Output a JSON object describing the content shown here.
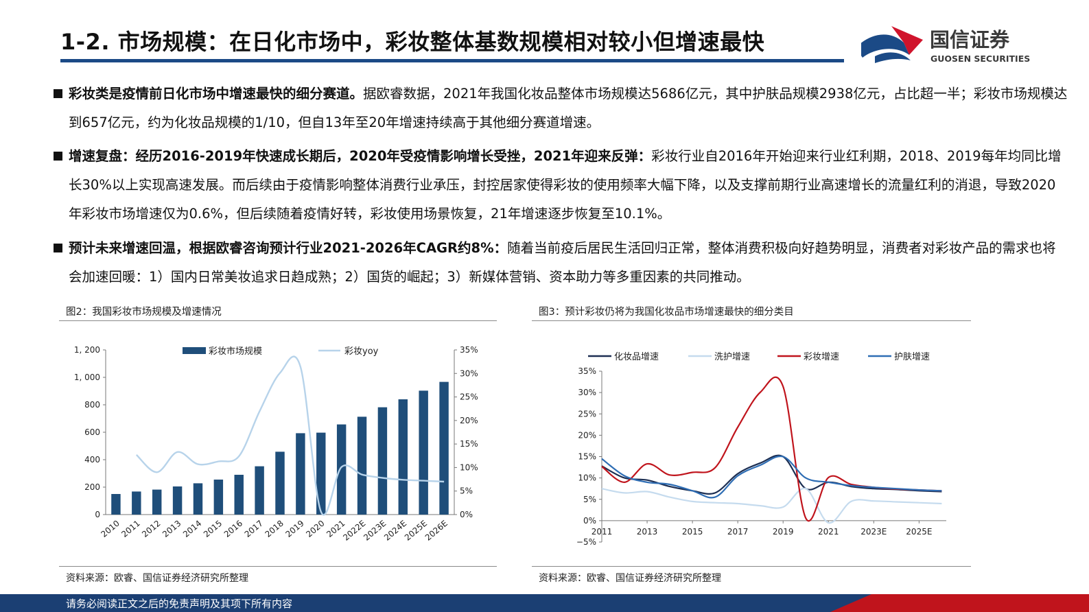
{
  "header": {
    "title": "1-2. 市场规模：在日化市场中，彩妆整体基数规模相对较小但增速最快",
    "logo_cn": "国信证券",
    "logo_en": "GUOSEN SECURITIES"
  },
  "bullets": [
    {
      "bold": "彩妆类是疫情前日化市场中增速最快的细分赛道。",
      "text": "据欧睿数据，2021年我国化妆品整体市场规模达5686亿元，其中护肤品规模2938亿元，占比超一半；彩妆市场规模达到657亿元，约为化妆品规模的1/10，但自13年至20年增速持续高于其他细分赛道增速。"
    },
    {
      "bold": "增速复盘：经历2016-2019年快速成长期后，2020年受疫情影响增长受挫，2021年迎来反弹：",
      "text": "彩妆行业自2016年开始迎来行业红利期，2018、2019每年均同比增长30%以上实现高速发展。而后续由于疫情影响整体消费行业承压，封控居家使得彩妆的使用频率大幅下降，以及支撑前期行业高速增长的流量红利的消退，导致2020年彩妆市场增速仅为0.6%，但后续随着疫情好转，彩妆使用场景恢复，21年增速逐步恢复至10.1%。"
    },
    {
      "bold": "预计未来增速回温，根据欧睿咨询预计行业2021-2026年CAGR约8%：",
      "text": "随着当前疫后居民生活回归正常，整体消费积极向好趋势明显，消费者对彩妆产品的需求也将会加速回暖：1）国内日常美妆追求日趋成熟；2）国货的崛起；3）新媒体营销、资本助力等多重因素的共同推动。"
    }
  ],
  "figures": [
    {
      "title": "图2：我国彩妆市场规模及增速情况",
      "source": "资料来源：欧睿、国信证券经济研究所整理"
    },
    {
      "title": "图3：预计彩妆仍将为我国化妆品市场增速最快的细分类目",
      "source": "资料来源：欧睿、国信证券经济研究所整理"
    }
  ],
  "footer": {
    "text": "请务必阅读正文之后的免责声明及其项下所有内容"
  },
  "chart_data": [
    {
      "type": "bar",
      "categories": [
        "2010",
        "2011",
        "2012",
        "2013",
        "2014",
        "2015",
        "2016",
        "2017",
        "2018",
        "2019",
        "2020",
        "2021",
        "2022E",
        "2023E",
        "2024E",
        "2025E",
        "2026E"
      ],
      "series": [
        {
          "name": "彩妆市场规模",
          "kind": "bar",
          "axis": "left",
          "color": "#1f4e7a",
          "values": [
            150,
            168,
            182,
            205,
            228,
            255,
            290,
            352,
            458,
            593,
            597,
            657,
            713,
            782,
            840,
            903,
            967
          ]
        },
        {
          "name": "彩妆yoy",
          "kind": "line",
          "axis": "right",
          "color": "#b7d3ea",
          "values": [
            null,
            12.7,
            9.0,
            13.3,
            10.7,
            11.3,
            12.4,
            21.9,
            30.1,
            31.4,
            0.6,
            10.1,
            8.5,
            7.8,
            7.4,
            7.2,
            7.0
          ]
        }
      ],
      "left_ticks": [
        "0",
        "200",
        "400",
        "600",
        "800",
        "1, 000",
        "1, 200"
      ],
      "right_ticks": [
        "0%",
        "5%",
        "10%",
        "15%",
        "20%",
        "25%",
        "30%",
        "35%"
      ],
      "ylim_left": [
        0,
        1200
      ],
      "ylim_right": [
        0,
        35
      ],
      "legend": "top"
    },
    {
      "type": "line",
      "x": [
        2011,
        2012,
        2013,
        2014,
        2015,
        2016,
        2017,
        2018,
        2019,
        2020,
        2021,
        2022,
        2023,
        2024,
        2025,
        2026
      ],
      "x_tick_labels": [
        "2011",
        "2013",
        "2015",
        "2017",
        "2019",
        "2021",
        "2023E",
        "2025E"
      ],
      "y_ticks": [
        "−5%",
        "0%",
        "5%",
        "10%",
        "15%",
        "20%",
        "25%",
        "30%",
        "35%"
      ],
      "ylim": [
        -5,
        35
      ],
      "series": [
        {
          "name": "化妆品增速",
          "color": "#1c2e52",
          "values": [
            12.8,
            10.0,
            9.5,
            8.0,
            7.0,
            6.5,
            11.0,
            13.5,
            15.0,
            7.5,
            9.0,
            8.0,
            7.5,
            7.3,
            7.0,
            6.8
          ]
        },
        {
          "name": "洗护增速",
          "color": "#c5dbee",
          "values": [
            7.5,
            6.5,
            6.8,
            5.5,
            4.5,
            4.2,
            4.0,
            3.5,
            3.2,
            7.5,
            -0.5,
            4.5,
            4.6,
            4.4,
            4.2,
            4.0
          ]
        },
        {
          "name": "彩妆增速",
          "color": "#c0141c",
          "values": [
            12.7,
            9.0,
            13.3,
            10.7,
            11.3,
            12.4,
            21.9,
            30.1,
            31.4,
            0.6,
            10.1,
            8.5,
            7.8,
            7.4,
            7.2,
            7.0
          ]
        },
        {
          "name": "护肤增速",
          "color": "#2e6db4",
          "values": [
            14.5,
            10.5,
            9.0,
            8.5,
            7.0,
            5.5,
            10.5,
            13.0,
            15.0,
            10.0,
            9.0,
            8.2,
            7.8,
            7.5,
            7.2,
            7.0
          ]
        }
      ],
      "legend": "top"
    }
  ]
}
